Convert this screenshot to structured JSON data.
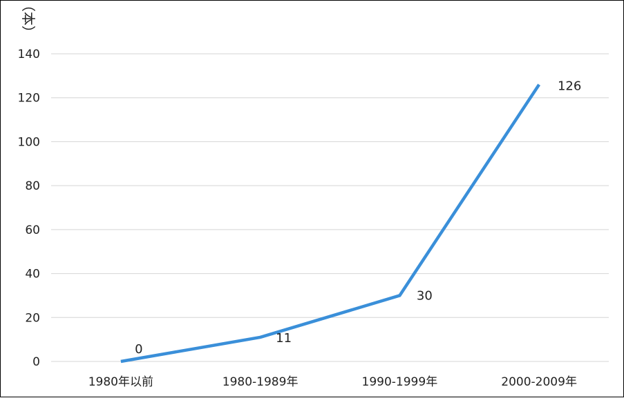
{
  "chart_data": {
    "type": "line",
    "title": "",
    "xlabel": "",
    "ylabel": "（本）",
    "categories": [
      "1980年以前",
      "1980-1989年",
      "1990-1999年",
      "2000-2009年"
    ],
    "series": [
      {
        "values": [
          0,
          11,
          30,
          126
        ],
        "color": "#3a8fd9"
      }
    ],
    "ylim": [
      0,
      140
    ],
    "yticks": [
      0,
      20,
      40,
      60,
      80,
      100,
      120,
      140
    ],
    "grid": true,
    "legend": "none"
  }
}
